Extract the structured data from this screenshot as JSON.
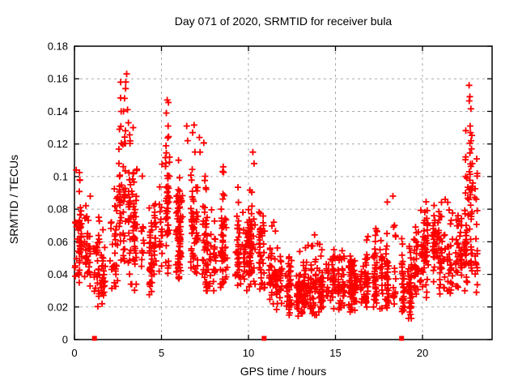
{
  "chart_data": {
    "type": "scatter",
    "title": "Day 071 of 2020, SRMTID for receiver bula",
    "xlabel": "GPS time / hours",
    "ylabel": "SRMTID / TECUs",
    "xlim": [
      0,
      24
    ],
    "ylim": [
      0,
      0.18
    ],
    "xticks": {
      "values": [
        0,
        5,
        10,
        15,
        20
      ],
      "labels": [
        "0",
        "5",
        "10",
        "15",
        "20"
      ]
    },
    "yticks": {
      "values": [
        0,
        0.02,
        0.04,
        0.06,
        0.08,
        0.1,
        0.12,
        0.14,
        0.16,
        0.18
      ],
      "labels": [
        "0",
        "0.02",
        "0.04",
        "0.06",
        "0.08",
        "0.1",
        "0.12",
        "0.14",
        "0.16",
        "0.18"
      ]
    },
    "grid": true,
    "legend": "none",
    "marker": {
      "glyph": "plus",
      "color": "#ff0000",
      "size": 9
    },
    "baseline_squares_hours": [
      1.15,
      10.9,
      18.8
    ],
    "series_name": "SRMTID",
    "seed": 71,
    "density_bins": [
      [
        0.0,
        0.5,
        50,
        0.035,
        0.062,
        0.105
      ],
      [
        0.5,
        1.0,
        40,
        0.03,
        0.055,
        0.092
      ],
      [
        1.0,
        1.5,
        32,
        0.02,
        0.047,
        0.082
      ],
      [
        1.5,
        2.0,
        26,
        0.018,
        0.04,
        0.07
      ],
      [
        2.0,
        2.5,
        34,
        0.03,
        0.058,
        0.108
      ],
      [
        2.5,
        3.0,
        55,
        0.045,
        0.092,
        0.165
      ],
      [
        3.0,
        3.5,
        48,
        0.034,
        0.078,
        0.148
      ],
      [
        3.5,
        4.0,
        38,
        0.03,
        0.062,
        0.108
      ],
      [
        4.0,
        4.5,
        38,
        0.026,
        0.054,
        0.094
      ],
      [
        4.5,
        5.0,
        40,
        0.034,
        0.068,
        0.117
      ],
      [
        5.0,
        5.5,
        50,
        0.04,
        0.08,
        0.148
      ],
      [
        5.5,
        6.0,
        42,
        0.038,
        0.068,
        0.12
      ],
      [
        6.0,
        6.5,
        40,
        0.035,
        0.062,
        0.104
      ],
      [
        6.5,
        7.0,
        44,
        0.038,
        0.07,
        0.134
      ],
      [
        7.0,
        7.5,
        40,
        0.034,
        0.064,
        0.124
      ],
      [
        7.5,
        8.0,
        38,
        0.03,
        0.055,
        0.098
      ],
      [
        8.0,
        8.5,
        38,
        0.03,
        0.052,
        0.092
      ],
      [
        8.5,
        9.0,
        40,
        0.034,
        0.058,
        0.106
      ],
      [
        9.0,
        9.5,
        38,
        0.03,
        0.055,
        0.094
      ],
      [
        9.5,
        10.0,
        38,
        0.03,
        0.052,
        0.092
      ],
      [
        10.0,
        10.5,
        44,
        0.034,
        0.06,
        0.115
      ],
      [
        10.5,
        11.0,
        40,
        0.028,
        0.052,
        0.096
      ],
      [
        11.0,
        11.5,
        38,
        0.022,
        0.042,
        0.075
      ],
      [
        11.5,
        12.0,
        38,
        0.018,
        0.037,
        0.064
      ],
      [
        12.0,
        12.5,
        42,
        0.014,
        0.032,
        0.058
      ],
      [
        12.5,
        13.0,
        42,
        0.011,
        0.03,
        0.054
      ],
      [
        13.0,
        13.5,
        42,
        0.013,
        0.032,
        0.06
      ],
      [
        13.5,
        14.0,
        42,
        0.015,
        0.034,
        0.068
      ],
      [
        14.0,
        14.5,
        42,
        0.017,
        0.035,
        0.062
      ],
      [
        14.5,
        15.0,
        42,
        0.017,
        0.034,
        0.058
      ],
      [
        15.0,
        15.5,
        42,
        0.016,
        0.033,
        0.06
      ],
      [
        15.5,
        16.0,
        42,
        0.017,
        0.035,
        0.066
      ],
      [
        16.0,
        16.5,
        42,
        0.018,
        0.034,
        0.06
      ],
      [
        16.5,
        17.0,
        42,
        0.02,
        0.036,
        0.068
      ],
      [
        17.0,
        17.5,
        42,
        0.02,
        0.04,
        0.076
      ],
      [
        17.5,
        18.0,
        38,
        0.018,
        0.038,
        0.072
      ],
      [
        18.0,
        18.5,
        38,
        0.02,
        0.042,
        0.088
      ],
      [
        18.5,
        19.0,
        36,
        0.014,
        0.034,
        0.07
      ],
      [
        19.0,
        19.5,
        36,
        0.013,
        0.032,
        0.062
      ],
      [
        19.5,
        20.0,
        42,
        0.02,
        0.046,
        0.082
      ],
      [
        20.0,
        20.5,
        44,
        0.024,
        0.055,
        0.092
      ],
      [
        20.5,
        21.0,
        44,
        0.03,
        0.06,
        0.09
      ],
      [
        21.0,
        21.5,
        40,
        0.028,
        0.052,
        0.086
      ],
      [
        21.5,
        22.0,
        40,
        0.028,
        0.055,
        0.088
      ],
      [
        22.0,
        22.5,
        42,
        0.03,
        0.058,
        0.094
      ],
      [
        22.5,
        23.0,
        52,
        0.032,
        0.072,
        0.15
      ],
      [
        23.0,
        23.15,
        20,
        0.028,
        0.055,
        0.12
      ]
    ],
    "accent_points": [
      [
        0.1,
        0.104
      ],
      [
        0.3,
        0.098
      ],
      [
        2.82,
        0.14
      ],
      [
        2.88,
        0.148
      ],
      [
        2.95,
        0.158
      ],
      [
        3.0,
        0.163
      ],
      [
        3.05,
        0.141
      ],
      [
        3.1,
        0.133
      ],
      [
        5.28,
        0.139
      ],
      [
        5.33,
        0.147
      ],
      [
        5.38,
        0.131
      ],
      [
        6.45,
        0.131
      ],
      [
        6.5,
        0.122
      ],
      [
        7.18,
        0.124
      ],
      [
        7.22,
        0.115
      ],
      [
        8.55,
        0.106
      ],
      [
        10.25,
        0.115
      ],
      [
        10.32,
        0.108
      ],
      [
        18.3,
        0.088
      ],
      [
        22.68,
        0.156
      ],
      [
        22.72,
        0.149
      ],
      [
        22.74,
        0.131
      ],
      [
        22.76,
        0.127
      ],
      [
        22.79,
        0.122
      ],
      [
        22.82,
        0.117
      ],
      [
        22.86,
        0.108
      ],
      [
        22.9,
        0.096
      ]
    ]
  },
  "colors": {
    "background": "#ffffff",
    "axis": "#000000",
    "grid": "#a8a8a8",
    "marker": "#ff0000",
    "text": "#000000"
  }
}
